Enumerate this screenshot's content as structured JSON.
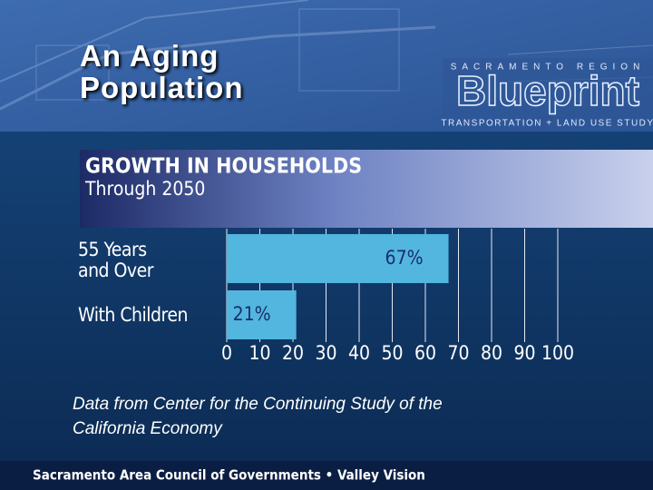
{
  "title": "An Aging Population",
  "logo": {
    "top": "SACRAMENTO REGION",
    "name": "Blueprint",
    "bottom": "TRANSPORTATION + LAND USE STUDY"
  },
  "chart_data": {
    "type": "bar",
    "orientation": "horizontal",
    "title": "GROWTH IN HOUSEHOLDS",
    "subtitle": "Through 2050",
    "categories": [
      "55 Years and Over",
      "With Children"
    ],
    "values": [
      67,
      21
    ],
    "value_labels": [
      "67%",
      "21%"
    ],
    "color": "#52b6df",
    "xlim": [
      0,
      100
    ],
    "xticks": [
      0,
      10,
      20,
      30,
      40,
      50,
      60,
      70,
      80,
      90,
      100
    ],
    "grid": true
  },
  "note": "Data from Center for the Continuing Study of the California Economy",
  "footer": "Sacramento Area Council of Governments  •  Valley Vision"
}
